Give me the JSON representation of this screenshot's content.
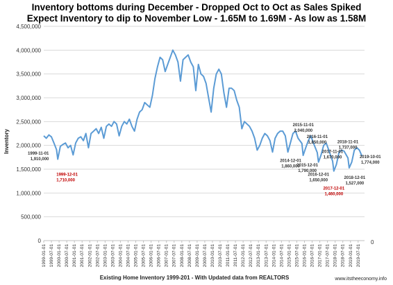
{
  "chart_data": {
    "type": "line",
    "title": "Inventory bottoms during  December - Dropped Oct to Oct as Sales Spiked",
    "subtitle": "Expect Inventory to dip to November Low - 1.65M to 1.69M - As low as 1.58M",
    "xlabel": "Existing Home Inventory 1999-201 - With Updated data from REALTORS",
    "ylabel": "Inventory",
    "ylim": [
      0,
      4500000
    ],
    "y_ticks": [
      "0",
      "500,000",
      "1,000,000",
      "1,500,000",
      "2,000,000",
      "2,500,000",
      "3,000,000",
      "3,500,000",
      "4,000,000",
      "4,500,000"
    ],
    "y_tick_values": [
      0,
      500000,
      1000000,
      1500000,
      2000000,
      2500000,
      3000000,
      3500000,
      4000000,
      4500000
    ],
    "x_tick_labels": [
      "1999-01-01",
      "1999-07-01",
      "2000-01-01",
      "2000-07-01",
      "2001-01-01",
      "2001-07-01",
      "2002-01-01",
      "2002-07-01",
      "2003-01-01",
      "2003-07-01",
      "2004-01-01",
      "2004-07-01",
      "2005-01-01",
      "2005-07-01",
      "2006-01-01",
      "2006-07-01",
      "2007-01-01",
      "2007-07-01",
      "2008-01-01",
      "2008-07-01",
      "2009-01-01",
      "2009-07-01",
      "2010-01-01",
      "2010-07-01",
      "2011-01-01",
      "2011-07-01",
      "2012-01-01",
      "2012-07-01",
      "2013-01-01",
      "2013-07-01",
      "2014-01-01",
      "2014-07-01",
      "2015-01-01",
      "2015-07-01",
      "2016-01-01",
      "2016-07-01",
      "2017-01-01",
      "2017-07-01",
      "2018-01-01",
      "2018-07-01",
      "2019-01-01",
      "2019-07-01"
    ],
    "right_axis_label": "0",
    "grid": true,
    "series": [
      {
        "color": "#5b9bd5",
        "x": [
          "1999-01",
          "1999-03",
          "1999-05",
          "1999-07",
          "1999-09",
          "1999-11",
          "1999-12",
          "2000-02",
          "2000-04",
          "2000-06",
          "2000-08",
          "2000-10",
          "2000-12",
          "2001-02",
          "2001-04",
          "2001-06",
          "2001-08",
          "2001-10",
          "2001-12",
          "2002-02",
          "2002-04",
          "2002-06",
          "2002-08",
          "2002-10",
          "2002-12",
          "2003-02",
          "2003-04",
          "2003-06",
          "2003-08",
          "2003-10",
          "2003-12",
          "2004-02",
          "2004-04",
          "2004-06",
          "2004-08",
          "2004-10",
          "2004-12",
          "2005-02",
          "2005-04",
          "2005-06",
          "2005-08",
          "2005-10",
          "2005-12",
          "2006-02",
          "2006-04",
          "2006-06",
          "2006-08",
          "2006-10",
          "2006-12",
          "2007-02",
          "2007-04",
          "2007-06",
          "2007-08",
          "2007-10",
          "2007-12",
          "2008-02",
          "2008-04",
          "2008-06",
          "2008-08",
          "2008-10",
          "2008-12",
          "2009-02",
          "2009-04",
          "2009-06",
          "2009-08",
          "2009-10",
          "2009-12",
          "2010-02",
          "2010-04",
          "2010-06",
          "2010-08",
          "2010-10",
          "2010-12",
          "2011-02",
          "2011-04",
          "2011-06",
          "2011-08",
          "2011-10",
          "2011-12",
          "2012-02",
          "2012-04",
          "2012-06",
          "2012-08",
          "2012-10",
          "2012-12",
          "2013-02",
          "2013-04",
          "2013-06",
          "2013-08",
          "2013-10",
          "2013-12",
          "2014-02",
          "2014-04",
          "2014-06",
          "2014-08",
          "2014-10",
          "2014-12",
          "2015-02",
          "2015-04",
          "2015-06",
          "2015-08",
          "2015-11",
          "2015-12",
          "2016-02",
          "2016-04",
          "2016-06",
          "2016-08",
          "2016-11",
          "2016-12",
          "2017-02",
          "2017-04",
          "2017-06",
          "2017-08",
          "2017-11",
          "2017-12",
          "2018-02",
          "2018-04",
          "2018-06",
          "2018-08",
          "2018-11",
          "2018-12",
          "2019-02",
          "2019-04",
          "2019-06",
          "2019-08",
          "2019-10"
        ],
        "values": [
          2200000,
          2150000,
          2220000,
          2180000,
          2050000,
          1910000,
          1710000,
          1980000,
          2020000,
          2050000,
          1950000,
          2000000,
          1800000,
          2050000,
          2150000,
          2180000,
          2100000,
          2250000,
          1950000,
          2250000,
          2300000,
          2350000,
          2250000,
          2380000,
          2150000,
          2400000,
          2450000,
          2400000,
          2500000,
          2450000,
          2200000,
          2400000,
          2500000,
          2450000,
          2550000,
          2400000,
          2300000,
          2550000,
          2700000,
          2750000,
          2900000,
          2850000,
          2800000,
          3050000,
          3400000,
          3650000,
          3850000,
          3800000,
          3550000,
          3700000,
          3850000,
          4000000,
          3900000,
          3750000,
          3350000,
          3800000,
          3850000,
          3900000,
          3750000,
          3650000,
          3150000,
          3700000,
          3500000,
          3450000,
          3300000,
          3000000,
          2700000,
          3200000,
          3500000,
          3600000,
          3500000,
          3100000,
          2800000,
          3200000,
          3200000,
          3150000,
          2950000,
          2800000,
          2350000,
          2500000,
          2450000,
          2400000,
          2300000,
          2150000,
          1900000,
          2000000,
          2150000,
          2250000,
          2200000,
          2100000,
          1860000,
          2150000,
          2250000,
          2300000,
          2300000,
          2200000,
          1860000,
          2050000,
          2250000,
          2300000,
          2150000,
          2040000,
          1790000,
          1950000,
          2100000,
          2200000,
          2050000,
          1850000,
          1650000,
          1800000,
          2000000,
          2050000,
          1900000,
          1670000,
          1460000,
          1600000,
          1850000,
          1900000,
          1880000,
          1737000,
          1527000,
          1650000,
          1900000,
          1950000,
          1900000,
          1774000
        ]
      }
    ],
    "annotations": [
      {
        "label": "1999-11-01",
        "value": "1,910,000",
        "date": "1999-11",
        "color": "gray"
      },
      {
        "label": "1999-12-01",
        "value": "1,710,000",
        "date": "1999-12",
        "color": "red"
      },
      {
        "label": "2014-12-01",
        "value": "1,860,000",
        "date": "2014-12",
        "color": "gray"
      },
      {
        "label": "2015-11-01",
        "value": "2,040,000",
        "date": "2015-11",
        "color": "gray"
      },
      {
        "label": "2015-12-01",
        "value": "1,790,000",
        "date": "2015-12",
        "color": "gray"
      },
      {
        "label": "2016-11-01",
        "value": "1,850,000",
        "date": "2016-11",
        "color": "gray"
      },
      {
        "label": "2016-12-01",
        "value": "1,650,000",
        "date": "2016-12",
        "color": "gray"
      },
      {
        "label": "2017-11-01",
        "value": "1,670,000",
        "date": "2017-11",
        "color": "gray"
      },
      {
        "label": "2017-12-01",
        "value": "1,460,000",
        "date": "2017-12",
        "color": "red"
      },
      {
        "label": "2018-11-01",
        "value": "1,737,000",
        "date": "2018-11",
        "color": "gray"
      },
      {
        "label": "2018-12-01",
        "value": "1,527,000",
        "date": "2018-12",
        "color": "gray"
      },
      {
        "label": "2019-10-01",
        "value": "1,774,000",
        "date": "2019-10",
        "color": "gray"
      }
    ],
    "source": "www.itstheeconomy.info"
  }
}
